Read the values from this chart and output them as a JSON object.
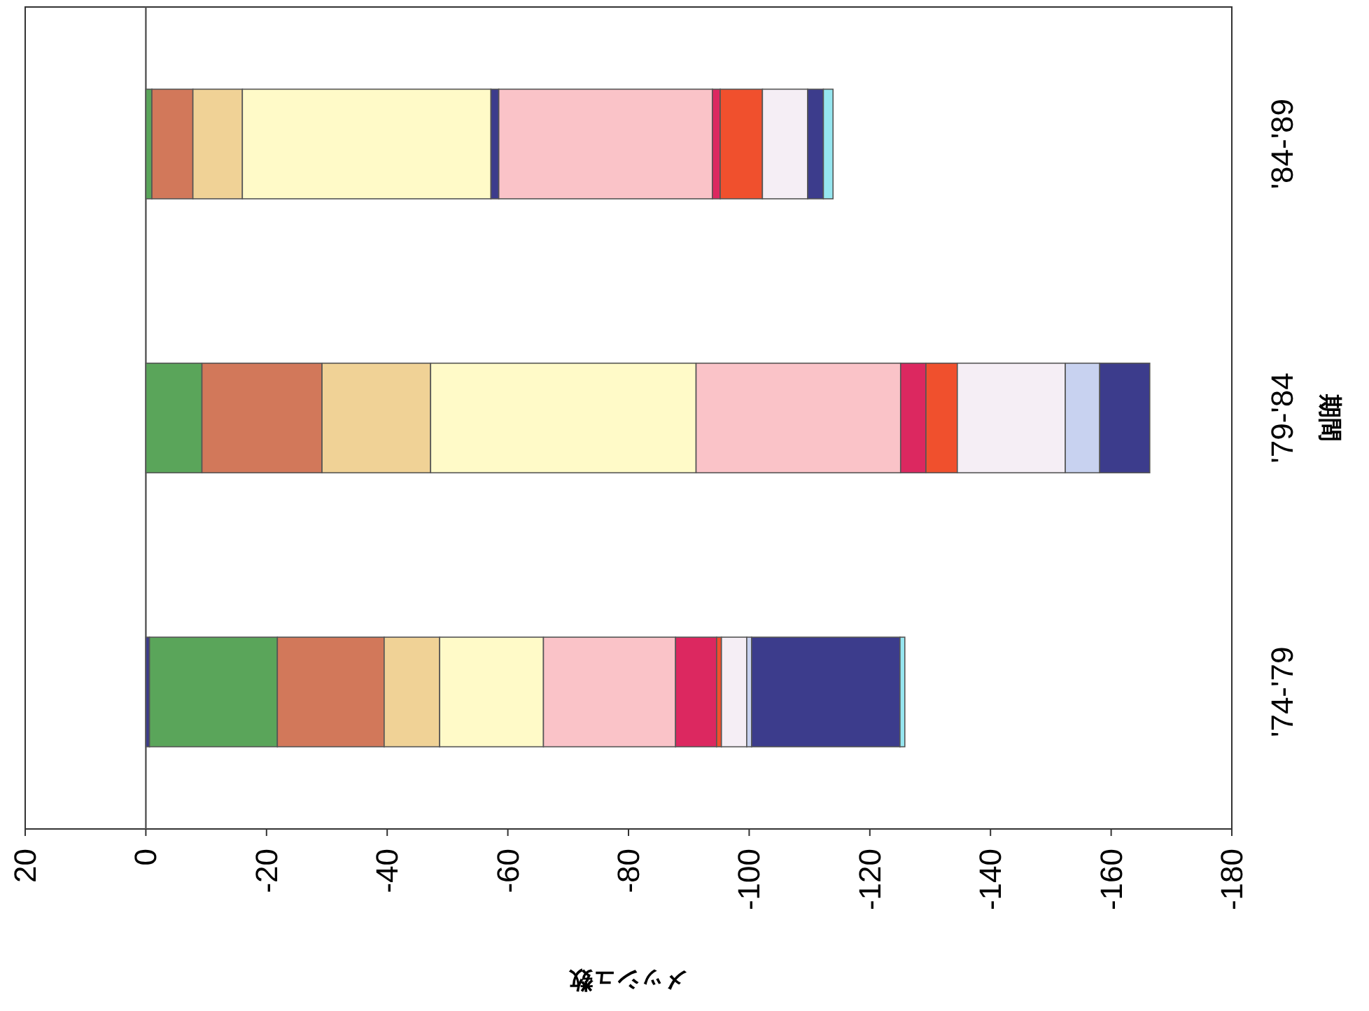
{
  "chart_data": {
    "type": "bar",
    "orientation": "horizontal",
    "stacked": true,
    "categories": [
      "'84-'89",
      "'79-'84",
      "'74-'79"
    ],
    "xlabel": "メッシュ数",
    "ylabel": "期間",
    "xlim": [
      20,
      -180
    ],
    "xticks": [
      20,
      0,
      -20,
      -40,
      -60,
      -80,
      -100,
      -120,
      -140,
      -160,
      -180
    ],
    "ref_lines": [
      {
        "axis": "x",
        "value": 0,
        "color": "#555555"
      }
    ],
    "series": [
      {
        "color": "#3c3c8c",
        "values": [
          null,
          null,
          -0.6
        ]
      },
      {
        "color": "#5aa55a",
        "values": [
          -1.0,
          -9.3,
          -21.2
        ]
      },
      {
        "color": "#d2785a",
        "values": [
          -6.8,
          -19.9,
          -17.7
        ]
      },
      {
        "color": "#f0d296",
        "values": [
          -8.2,
          -18.0,
          -9.2
        ]
      },
      {
        "color": "#fffac8",
        "values": [
          -41.2,
          -44.0,
          -17.2
        ]
      },
      {
        "color": "#3c3c8c",
        "values": [
          -1.3,
          null,
          null
        ]
      },
      {
        "color": "#fac3c8",
        "values": [
          -35.4,
          -33.9,
          -21.9
        ]
      },
      {
        "color": "#dc2860",
        "values": [
          -1.3,
          -4.2,
          -6.8
        ]
      },
      {
        "color": "#f0502d",
        "values": [
          -7.0,
          -5.2,
          -0.8
        ]
      },
      {
        "color": "#f5eef5",
        "values": [
          -7.5,
          -17.9,
          -4.2
        ]
      },
      {
        "color": "#c8d2f0",
        "values": [
          null,
          -5.7,
          -0.8
        ]
      },
      {
        "color": "#3c3c8c",
        "values": [
          -2.6,
          -8.3,
          -24.6
        ]
      },
      {
        "color": "#96e6f0",
        "values": [
          -1.6,
          null,
          -0.8
        ]
      }
    ]
  }
}
